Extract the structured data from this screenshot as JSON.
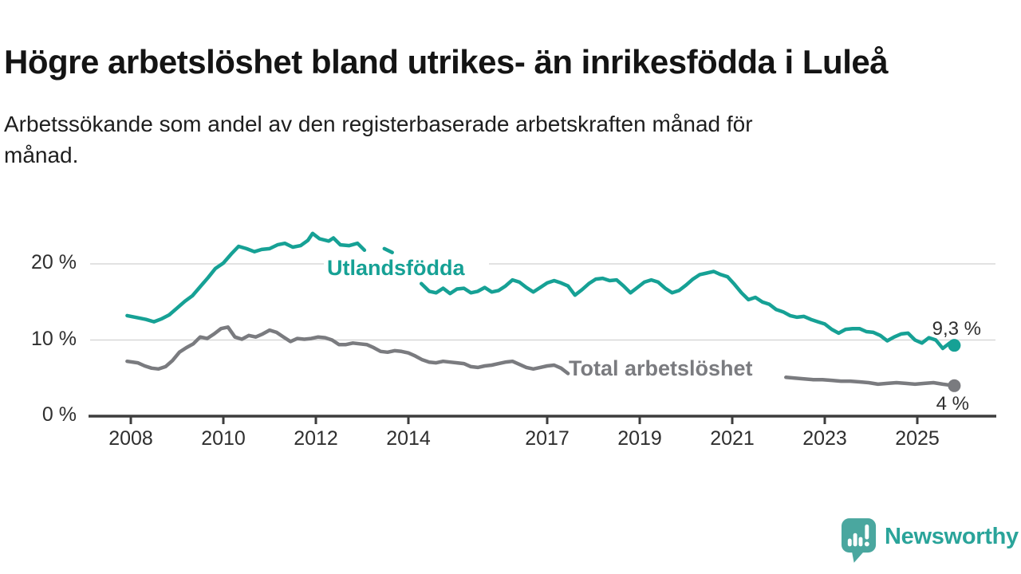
{
  "header": {
    "title": "Högre arbetslöshet bland utrikes- än inrikesfödda i Luleå",
    "subtitle_lines": [
      "Arbetssökande som andel av den registerbaserade arbetskraften månad för",
      "månad."
    ]
  },
  "colors": {
    "teal": "#16a195",
    "gray": "#7a7b7f",
    "gridline": "#d8d8d8",
    "axis": "#3d3d3d",
    "tick_text": "#2f2f2f",
    "value_text": "#2f2f2f",
    "logo_icon": "#4aa79f",
    "logo_text": "#2aa49a"
  },
  "footer": {
    "brand": "Newsworthy"
  },
  "chart_data": {
    "type": "line",
    "title": "Högre arbetslöshet bland utrikes- än inrikesfödda i Luleå",
    "subtitle": "Arbetssökande som andel av den registerbaserade arbetskraften månad för månad.",
    "xlabel": "",
    "ylabel": "",
    "x_range": [
      2007.9,
      2026.0
    ],
    "ylim": [
      0,
      25
    ],
    "grid": "horizontal",
    "legend_position": "inline-labels",
    "x_axis": {
      "ticks": [
        "2008",
        "2010",
        "2012",
        "2014",
        "2017",
        "2019",
        "2021",
        "2023",
        "2025"
      ],
      "tick_years": [
        2008,
        2010,
        2012,
        2014,
        2017,
        2019,
        2021,
        2023,
        2025
      ]
    },
    "y_axis": {
      "ticks": [
        "20 %",
        "10 %",
        "0 %"
      ],
      "tick_values": [
        20,
        10,
        0
      ]
    },
    "series": [
      {
        "key": "utlandsfodda",
        "name": "Utlandsfödda",
        "color_key": "teal",
        "end_label": "9,3 %",
        "end_value": 9.3,
        "segments": [
          {
            "x": [
              2007.92,
              2008.17,
              2008.33,
              2008.5,
              2008.67,
              2008.83,
              2009.0,
              2009.17,
              2009.33,
              2009.5,
              2009.67,
              2009.83,
              2010.0,
              2010.17,
              2010.33,
              2010.5,
              2010.67,
              2010.83,
              2011.0,
              2011.17,
              2011.33,
              2011.5,
              2011.67,
              2011.83,
              2011.93,
              2012.08,
              2012.28,
              2012.38,
              2012.53,
              2012.72,
              2012.9,
              2013.05
            ],
            "y": [
              13.2,
              12.9,
              12.7,
              12.4,
              12.8,
              13.3,
              14.2,
              15.1,
              15.8,
              17.0,
              18.2,
              19.4,
              20.1,
              21.3,
              22.3,
              22.0,
              21.6,
              21.9,
              22.0,
              22.5,
              22.7,
              22.2,
              22.4,
              23.1,
              24.0,
              23.3,
              23.0,
              23.4,
              22.5,
              22.4,
              22.7,
              21.8
            ]
          },
          {
            "x": [
              2013.48,
              2013.65
            ],
            "y": [
              22.0,
              21.5
            ]
          },
          {
            "x": [
              2014.28,
              2014.45,
              2014.6,
              2014.75,
              2014.9,
              2015.05,
              2015.2,
              2015.35,
              2015.5,
              2015.65,
              2015.8,
              2015.95,
              2016.1,
              2016.25,
              2016.4,
              2016.55,
              2016.7,
              2016.85,
              2017.0,
              2017.15,
              2017.3,
              2017.45,
              2017.6,
              2017.75,
              2017.9,
              2018.05,
              2018.2,
              2018.35,
              2018.5,
              2018.65,
              2018.8,
              2018.95,
              2019.1,
              2019.25,
              2019.4,
              2019.55,
              2019.7,
              2019.85,
              2020.0,
              2020.15,
              2020.3,
              2020.45,
              2020.6,
              2020.75,
              2020.9,
              2021.05,
              2021.2,
              2021.35,
              2021.5,
              2021.65,
              2021.8,
              2021.95,
              2022.1,
              2022.25,
              2022.4,
              2022.55,
              2022.7,
              2022.85,
              2023.0,
              2023.15,
              2023.3,
              2023.45,
              2023.6,
              2023.75,
              2023.9,
              2024.05,
              2024.2,
              2024.35,
              2024.5,
              2024.65,
              2024.8,
              2024.95,
              2025.1,
              2025.25,
              2025.4,
              2025.55,
              2025.7,
              2025.8
            ],
            "y": [
              17.4,
              16.4,
              16.2,
              16.8,
              16.1,
              16.7,
              16.8,
              16.2,
              16.4,
              16.9,
              16.3,
              16.5,
              17.1,
              17.9,
              17.6,
              16.9,
              16.3,
              16.9,
              17.5,
              17.8,
              17.5,
              17.1,
              15.9,
              16.6,
              17.4,
              18.0,
              18.1,
              17.8,
              17.9,
              17.1,
              16.2,
              16.9,
              17.6,
              17.9,
              17.6,
              16.8,
              16.2,
              16.5,
              17.2,
              18.0,
              18.6,
              18.8,
              19.0,
              18.6,
              18.3,
              17.3,
              16.2,
              15.3,
              15.6,
              15.0,
              14.7,
              14.0,
              13.7,
              13.2,
              13.0,
              13.1,
              12.7,
              12.4,
              12.1,
              11.4,
              10.9,
              11.4,
              11.5,
              11.5,
              11.1,
              11.0,
              10.6,
              9.9,
              10.4,
              10.8,
              10.9,
              10.0,
              9.6,
              10.3,
              10.0,
              8.9,
              9.6,
              9.3
            ]
          }
        ]
      },
      {
        "key": "total",
        "name": "Total arbetslöshet",
        "color_key": "gray",
        "end_label": "4 %",
        "end_value": 4.0,
        "segments": [
          {
            "x": [
              2007.92,
              2008.15,
              2008.3,
              2008.45,
              2008.6,
              2008.75,
              2008.9,
              2009.05,
              2009.2,
              2009.35,
              2009.5,
              2009.65,
              2009.8,
              2009.95,
              2010.1,
              2010.25,
              2010.4,
              2010.55,
              2010.7,
              2010.85,
              2011.0,
              2011.15,
              2011.3,
              2011.45,
              2011.6,
              2011.75,
              2011.9,
              2012.05,
              2012.2,
              2012.35,
              2012.5,
              2012.65,
              2012.8,
              2012.95,
              2013.1,
              2013.25,
              2013.4,
              2013.55,
              2013.7,
              2013.85,
              2014.0,
              2014.15,
              2014.3,
              2014.45,
              2014.6,
              2014.75,
              2014.9,
              2015.05,
              2015.2,
              2015.35,
              2015.5,
              2015.65,
              2015.8,
              2015.95,
              2016.1,
              2016.25,
              2016.4,
              2016.55,
              2016.7,
              2016.85,
              2017.0,
              2017.15,
              2017.3,
              2017.45
            ],
            "y": [
              7.2,
              7.0,
              6.6,
              6.3,
              6.2,
              6.5,
              7.3,
              8.4,
              9.0,
              9.5,
              10.4,
              10.2,
              10.8,
              11.5,
              11.7,
              10.4,
              10.1,
              10.6,
              10.4,
              10.8,
              11.3,
              11.0,
              10.4,
              9.8,
              10.2,
              10.1,
              10.2,
              10.4,
              10.3,
              10.0,
              9.4,
              9.4,
              9.6,
              9.5,
              9.4,
              9.0,
              8.5,
              8.4,
              8.6,
              8.5,
              8.3,
              7.9,
              7.4,
              7.1,
              7.0,
              7.2,
              7.1,
              7.0,
              6.9,
              6.5,
              6.4,
              6.6,
              6.7,
              6.9,
              7.1,
              7.2,
              6.8,
              6.4,
              6.2,
              6.4,
              6.6,
              6.7,
              6.3,
              5.6
            ]
          },
          {
            "x": [
              2022.16,
              2022.35,
              2022.55,
              2022.75,
              2022.95,
              2023.15,
              2023.35,
              2023.55,
              2023.75,
              2023.95,
              2024.15,
              2024.35,
              2024.55,
              2024.75,
              2024.95,
              2025.15,
              2025.35,
              2025.55,
              2025.8
            ],
            "y": [
              5.1,
              5.0,
              4.9,
              4.8,
              4.8,
              4.7,
              4.6,
              4.6,
              4.5,
              4.4,
              4.2,
              4.3,
              4.4,
              4.3,
              4.2,
              4.3,
              4.4,
              4.2,
              4.0
            ]
          }
        ]
      }
    ]
  }
}
